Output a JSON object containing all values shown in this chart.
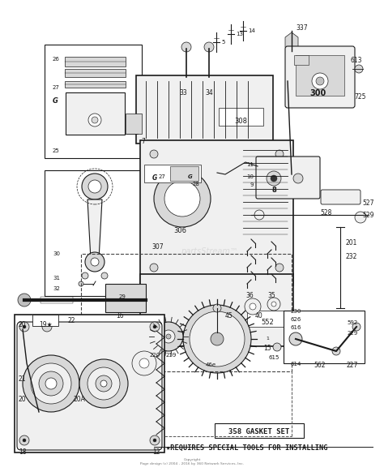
{
  "bg_color": "#ffffff",
  "fig_width": 4.74,
  "fig_height": 5.87,
  "dpi": 100,
  "bottom_text1": "358 GASKET SET",
  "bottom_text2": "★REQUIRES SPECIAL TOOLS FOR INSTALLING",
  "copyright_text": "Copyright\nPage design (c) 2004 - 2016 by 360 Network Services, Inc.",
  "watermark": "partsStream™"
}
